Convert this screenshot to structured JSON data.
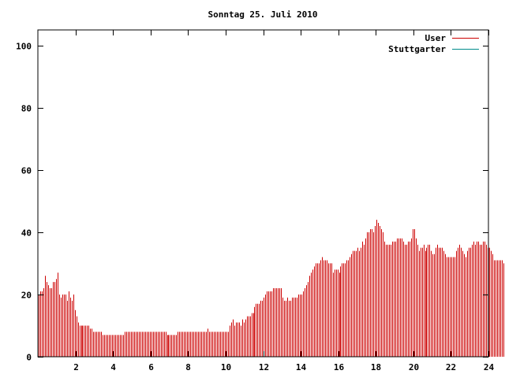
{
  "chart_data": {
    "type": "bar",
    "title": "Sonntag 25. Juli 2010",
    "xlabel": "",
    "ylabel": "",
    "xlim": [
      0,
      24
    ],
    "ylim": [
      0,
      105
    ],
    "x_ticks": [
      2,
      4,
      6,
      8,
      10,
      12,
      14,
      16,
      18,
      20,
      22,
      24
    ],
    "x_tick_labels": [
      "2",
      "4",
      "6",
      "8",
      "10",
      "12",
      "14",
      "16",
      "18",
      "20",
      "22",
      "24"
    ],
    "y_ticks": [
      0,
      20,
      40,
      60,
      80,
      100
    ],
    "y_tick_labels": [
      "0",
      "20",
      "40",
      "60",
      "80",
      "100"
    ],
    "grid": false,
    "legend_position": "top-right",
    "series": [
      {
        "name": "User",
        "color": "#cc0000",
        "bar_step_hours": 0.0833,
        "values": [
          20,
          21,
          21,
          22,
          26,
          24,
          23,
          22,
          22,
          24,
          24,
          25,
          27,
          20,
          19,
          20,
          20,
          20,
          18,
          21,
          19,
          18,
          20,
          15,
          13,
          11,
          10,
          10,
          10,
          10,
          10,
          10,
          10,
          9,
          9,
          8,
          8,
          8,
          8,
          8,
          8,
          7,
          7,
          7,
          7,
          7,
          7,
          7,
          7,
          7,
          7,
          7,
          7,
          7,
          7,
          8,
          8,
          8,
          8,
          8,
          8,
          8,
          8,
          8,
          8,
          8,
          8,
          8,
          8,
          8,
          8,
          8,
          8,
          8,
          8,
          8,
          8,
          8,
          8,
          8,
          8,
          8,
          7,
          7,
          7,
          7,
          7,
          7,
          7,
          8,
          8,
          8,
          8,
          8,
          8,
          8,
          8,
          8,
          8,
          8,
          8,
          8,
          8,
          8,
          8,
          8,
          8,
          8,
          9,
          8,
          8,
          8,
          8,
          8,
          8,
          8,
          8,
          8,
          8,
          8,
          8,
          8,
          10,
          11,
          12,
          10,
          11,
          11,
          11,
          10,
          12,
          11,
          12,
          13,
          13,
          13,
          14,
          14,
          16,
          17,
          17,
          17,
          18,
          18,
          19,
          20,
          21,
          21,
          21,
          21,
          22,
          22,
          22,
          22,
          22,
          22,
          19,
          18,
          18,
          19,
          18,
          18,
          19,
          19,
          19,
          19,
          20,
          20,
          20,
          21,
          22,
          23,
          24,
          26,
          27,
          28,
          29,
          30,
          30,
          30,
          31,
          32,
          31,
          31,
          31,
          30,
          30,
          30,
          27,
          28,
          28,
          28,
          27,
          29,
          30,
          30,
          30,
          31,
          31,
          32,
          33,
          34,
          34,
          34,
          35,
          34,
          35,
          37,
          36,
          38,
          40,
          40,
          41,
          41,
          40,
          42,
          44,
          43,
          42,
          41,
          40,
          37,
          36,
          36,
          36,
          36,
          37,
          37,
          37,
          38,
          38,
          38,
          38,
          37,
          36,
          36,
          37,
          37,
          38,
          41,
          41,
          38,
          36,
          34,
          35,
          35,
          36,
          34,
          35,
          36,
          36,
          34,
          33,
          33,
          35,
          36,
          35,
          35,
          35,
          34,
          33,
          32,
          32,
          32,
          32,
          32,
          32,
          34,
          35,
          36,
          35,
          34,
          33,
          32,
          34,
          35,
          35,
          36,
          37,
          36,
          37,
          37,
          36,
          36,
          37,
          37,
          36,
          35,
          35,
          34,
          33,
          31,
          31,
          31,
          31,
          31,
          31,
          30,
          29,
          28
        ]
      },
      {
        "name": "Stuttgarter",
        "color": "#008b8b",
        "values": []
      }
    ]
  }
}
